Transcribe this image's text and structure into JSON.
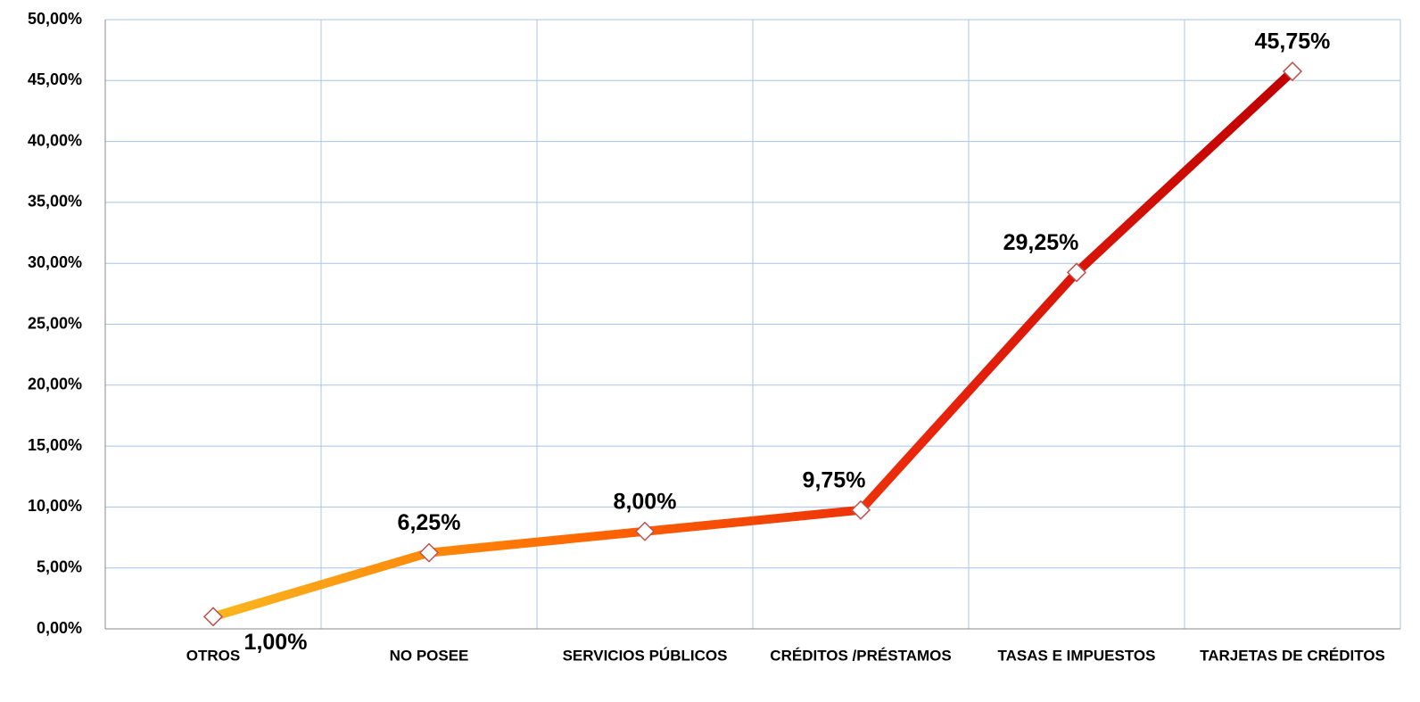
{
  "chart_data": {
    "type": "line",
    "categories": [
      "OTROS",
      "NO POSEE",
      "SERVICIOS PÚBLICOS",
      "CRÉDITOS /PRÉSTAMOS",
      "TASAS E IMPUESTOS",
      "TARJETAS DE CRÉDITOS"
    ],
    "values": [
      1,
      6.25,
      8,
      9.75,
      29.25,
      45.75
    ],
    "value_labels": [
      "1,00%",
      "6,25%",
      "8,00%",
      "9,75%",
      "29,25%",
      "45,75%"
    ],
    "gradient": [
      "#f9b71e",
      "#ff6a00",
      "#e8240c",
      "#c00000"
    ],
    "marker_color": "#c0504d",
    "ylim": [
      0,
      50
    ],
    "yticks": [
      {
        "value": 0,
        "label": "0,00%"
      },
      {
        "value": 5,
        "label": "5,00%"
      },
      {
        "value": 10,
        "label": "10,00%"
      },
      {
        "value": 15,
        "label": "15,00%"
      },
      {
        "value": 20,
        "label": "20,00%"
      },
      {
        "value": 25,
        "label": "25,00%"
      },
      {
        "value": 30,
        "label": "30,00%"
      },
      {
        "value": 35,
        "label": "35,00%"
      },
      {
        "value": 40,
        "label": "40,00%"
      },
      {
        "value": 45,
        "label": "45,00%"
      },
      {
        "value": 50,
        "label": "50,00%"
      }
    ],
    "grid": true
  }
}
